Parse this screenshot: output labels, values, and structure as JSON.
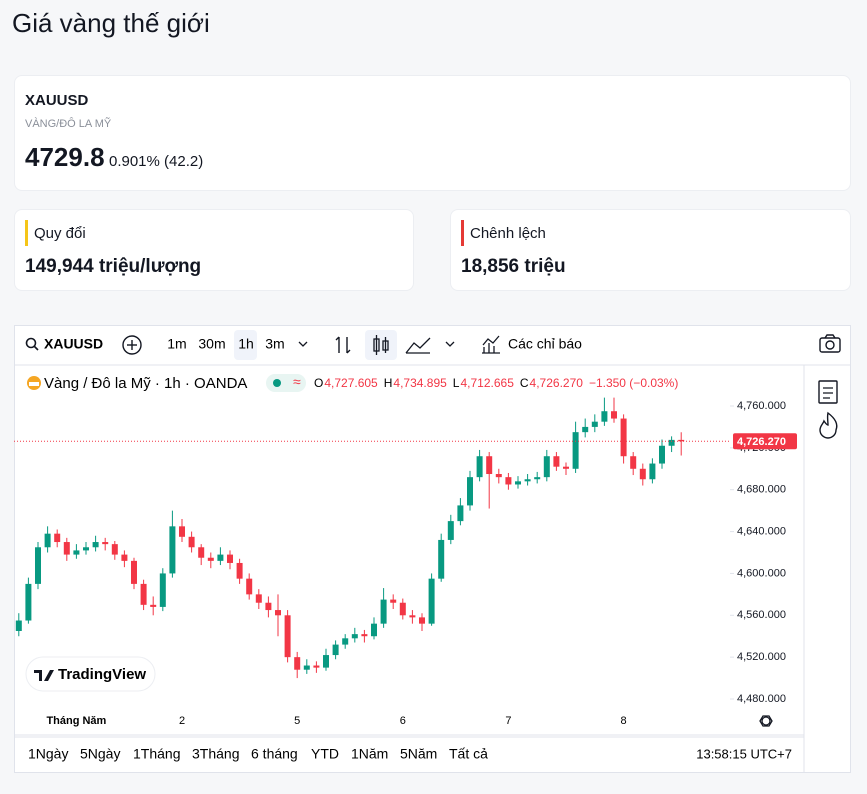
{
  "header": {
    "title": "Giá vàng thế giới"
  },
  "quote": {
    "symbol": "XAUUSD",
    "description": "VÀNG/ĐÔ LA MỸ",
    "price": "4729.8",
    "change": "0.901% (42.2)"
  },
  "cards": [
    {
      "label": "Quy đổi",
      "value": "149,944 triệu/lượng",
      "color": "#f5c518"
    },
    {
      "label": "Chênh lệch",
      "value": "18,856 triệu",
      "color": "#e53935"
    }
  ],
  "toolbar": {
    "symbol": "XAUUSD",
    "intervals": [
      "1m",
      "30m",
      "1h",
      "3m"
    ],
    "indicators": "Các chỉ báo"
  },
  "chart_data": {
    "type": "candlestick",
    "title": "Vàng / Đô la Mỹ · 1h · OANDA",
    "ohlc_legend": [
      {
        "key": "O",
        "text": "4,727.605"
      },
      {
        "key": "H",
        "text": "4,734.895"
      },
      {
        "key": "L",
        "text": "4,712.665"
      },
      {
        "key": "C",
        "text": "4,726.270"
      }
    ],
    "change_text": "−1.350 (−0.03%)",
    "categories": [
      null,
      null,
      null,
      null,
      null,
      null,
      "Tháng Năm",
      null,
      null,
      null,
      null,
      null,
      null,
      null,
      null,
      null,
      null,
      "2",
      null,
      null,
      null,
      null,
      null,
      null,
      null,
      null,
      null,
      null,
      null,
      "5",
      null,
      null,
      null,
      null,
      null,
      null,
      null,
      null,
      null,
      null,
      "6",
      null,
      null,
      null,
      null,
      null,
      null,
      null,
      null,
      null,
      null,
      "7",
      null,
      null,
      null,
      null,
      null,
      null,
      null,
      null,
      null,
      null,
      null,
      "8",
      null,
      null,
      null,
      null,
      null,
      null
    ],
    "open": [
      4545,
      4555,
      4590,
      4625,
      4638,
      4630,
      4618,
      4622,
      4625,
      4630,
      4628,
      4618,
      4612,
      4590,
      4570,
      4568,
      4600,
      4645,
      4635,
      4625,
      4615,
      4612,
      4618,
      4610,
      4595,
      4580,
      4572,
      4565,
      4560,
      4520,
      4508,
      4512,
      4510,
      4522,
      4532,
      4538,
      4542,
      4540,
      4552,
      4575,
      4572,
      4560,
      4558,
      4552,
      4595,
      4632,
      4650,
      4665,
      4692,
      4712,
      4695,
      4692,
      4685,
      4688,
      4690,
      4692,
      4712,
      4702,
      4700,
      4735,
      4740,
      4745,
      4755,
      4748,
      4712,
      4700,
      4690,
      4705,
      4722,
      4727.605
    ],
    "high": [
      4562,
      4596,
      4630,
      4645,
      4642,
      4634,
      4628,
      4630,
      4636,
      4634,
      4631,
      4622,
      4615,
      4594,
      4578,
      4605,
      4660,
      4652,
      4640,
      4628,
      4620,
      4625,
      4622,
      4614,
      4600,
      4585,
      4578,
      4580,
      4565,
      4525,
      4518,
      4516,
      4528,
      4536,
      4542,
      4548,
      4546,
      4558,
      4586,
      4580,
      4576,
      4565,
      4562,
      4600,
      4638,
      4656,
      4672,
      4698,
      4718,
      4716,
      4700,
      4696,
      4693,
      4695,
      4697,
      4718,
      4716,
      4706,
      4745,
      4748,
      4752,
      4768,
      4768,
      4752,
      4716,
      4705,
      4710,
      4728,
      4731,
      4734.895
    ],
    "low": [
      4540,
      4552,
      4585,
      4620,
      4625,
      4612,
      4614,
      4618,
      4621,
      4622,
      4613,
      4606,
      4585,
      4565,
      4560,
      4564,
      4596,
      4630,
      4620,
      4608,
      4605,
      4608,
      4604,
      4590,
      4575,
      4566,
      4558,
      4540,
      4515,
      4500,
      4504,
      4505,
      4507,
      4518,
      4528,
      4534,
      4534,
      4537,
      4548,
      4566,
      4556,
      4552,
      4545,
      4550,
      4592,
      4628,
      4646,
      4660,
      4688,
      4662,
      4686,
      4680,
      4681,
      4684,
      4686,
      4688,
      4698,
      4694,
      4696,
      4730,
      4735,
      4741,
      4744,
      4705,
      4694,
      4684,
      4686,
      4700,
      4716,
      4712.665
    ],
    "close": [
      4555,
      4590,
      4625,
      4638,
      4630,
      4618,
      4622,
      4625,
      4630,
      4628,
      4618,
      4612,
      4590,
      4570,
      4568,
      4600,
      4645,
      4635,
      4625,
      4615,
      4612,
      4618,
      4610,
      4595,
      4580,
      4572,
      4565,
      4560,
      4520,
      4508,
      4512,
      4510,
      4522,
      4532,
      4538,
      4542,
      4540,
      4552,
      4575,
      4572,
      4560,
      4558,
      4552,
      4595,
      4632,
      4650,
      4665,
      4692,
      4712,
      4695,
      4692,
      4685,
      4688,
      4690,
      4692,
      4712,
      4702,
      4700,
      4735,
      4740,
      4745,
      4755,
      4748,
      4712,
      4700,
      4690,
      4705,
      4722,
      4727.605,
      4726.27
    ],
    "up_color": "#089981",
    "down_color": "#f23645",
    "ylim": [
      4469.5,
      4796.3
    ],
    "yticks": [
      {
        "value": 4480,
        "label": "4,480.000"
      },
      {
        "value": 4520,
        "label": "4,520.000"
      },
      {
        "value": 4560,
        "label": "4,560.000"
      },
      {
        "value": 4600,
        "label": "4,600.000"
      },
      {
        "value": 4640,
        "label": "4,640.000"
      },
      {
        "value": 4680,
        "label": "4,680.000"
      },
      {
        "value": 4720,
        "label": "4,720.000"
      },
      {
        "value": 4760,
        "label": "4,760.000"
      }
    ],
    "last_price": {
      "value": 4726.27,
      "label": "4,726.270"
    },
    "watermark": "TradingView"
  },
  "ranges": [
    "1Ngày",
    "5Ngày",
    "1Tháng",
    "3Tháng",
    "6 tháng",
    "YTD",
    "1Năm",
    "5Năm",
    "Tất cả"
  ],
  "clock": "13:58:15 UTC+7"
}
